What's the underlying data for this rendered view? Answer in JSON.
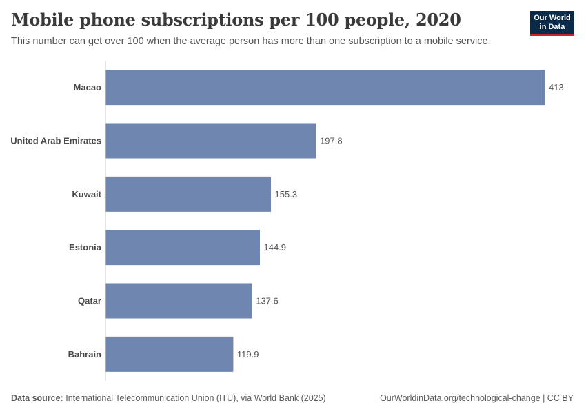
{
  "header": {
    "title": "Mobile phone subscriptions per 100 people, 2020",
    "subtitle": "This number can get over 100 when the average person has more than one subscription to a mobile service."
  },
  "logo": {
    "line1": "Our World",
    "line2": "in Data",
    "bg_color": "#0a2a4a",
    "accent_color": "#c4222e"
  },
  "footer": {
    "source_label": "Data source:",
    "source_text": "International Telecommunication Union (ITU), via World Bank (2025)",
    "right_text": "OurWorldinData.org/technological-change | CC BY"
  },
  "chart_data": {
    "type": "bar",
    "orientation": "horizontal",
    "categories": [
      "Macao",
      "United Arab Emirates",
      "Kuwait",
      "Estonia",
      "Qatar",
      "Bahrain"
    ],
    "values": [
      413,
      197.8,
      155.3,
      144.9,
      137.6,
      119.9
    ],
    "value_labels": [
      "413",
      "197.8",
      "155.3",
      "144.9",
      "137.6",
      "119.9"
    ],
    "xlim": [
      0,
      413
    ],
    "bar_color": "#6f87b0",
    "grid": false
  }
}
